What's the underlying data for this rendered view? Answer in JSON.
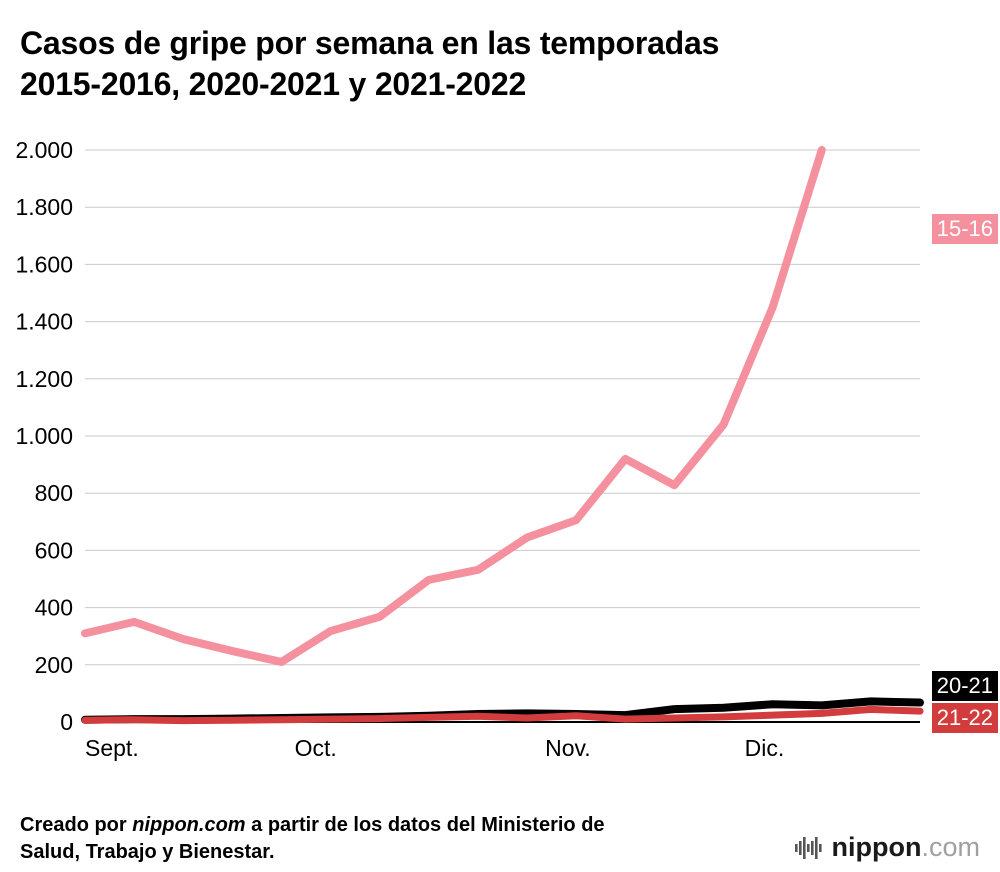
{
  "title_line1": "Casos de gripe por semana en las temporadas",
  "title_line2": "2015-2016, 2020-2021 y 2021-2022",
  "footer": {
    "prefix": "Creado por ",
    "brand": "nippon.com",
    "rest1": " a partir de los datos del Ministerio de",
    "rest2": "Salud, Trabajo y Bienestar."
  },
  "logo": {
    "name": "nippon",
    "tld": ".com"
  },
  "chart_data": {
    "type": "line",
    "title": "Casos de gripe por semana en las temporadas 2015-2016, 2020-2021 y 2021-2022",
    "xlabel": "",
    "ylabel": "",
    "ylim": [
      0,
      2000
    ],
    "grid": "horizontal",
    "legend_position": "right-edge-badges",
    "weeks": 18,
    "y_ticks": [
      {
        "v": 0,
        "label": "0"
      },
      {
        "v": 200,
        "label": "200"
      },
      {
        "v": 400,
        "label": "400"
      },
      {
        "v": 600,
        "label": "600"
      },
      {
        "v": 800,
        "label": "800"
      },
      {
        "v": 1000,
        "label": "1.000"
      },
      {
        "v": 1200,
        "label": "1.200"
      },
      {
        "v": 1400,
        "label": "1.400"
      },
      {
        "v": 1600,
        "label": "1.600"
      },
      {
        "v": 1800,
        "label": "1.800"
      },
      {
        "v": 2000,
        "label": "2.000"
      }
    ],
    "x_ticks": [
      {
        "f": 0.0,
        "label": "Sept."
      },
      {
        "f": 0.251,
        "label": "Oct."
      },
      {
        "f": 0.551,
        "label": "Nov."
      },
      {
        "f": 0.79,
        "label": "Dic."
      }
    ],
    "series": [
      {
        "name": "15-16",
        "color": "#f5919f",
        "width": 8,
        "values": [
          310,
          350,
          290,
          248,
          210,
          318,
          368,
          497,
          532,
          645,
          706,
          920,
          828,
          1040,
          1450,
          2000
        ]
      },
      {
        "name": "20-21",
        "color": "#000000",
        "width": 8,
        "values": [
          8,
          10,
          10,
          12,
          14,
          16,
          18,
          22,
          28,
          30,
          28,
          24,
          45,
          50,
          62,
          58,
          72,
          68
        ]
      },
      {
        "name": "21-22",
        "color": "#d23c3c",
        "width": 7,
        "values": [
          6,
          8,
          5,
          6,
          8,
          10,
          12,
          16,
          20,
          14,
          22,
          10,
          14,
          18,
          24,
          30,
          44,
          38
        ]
      }
    ]
  }
}
